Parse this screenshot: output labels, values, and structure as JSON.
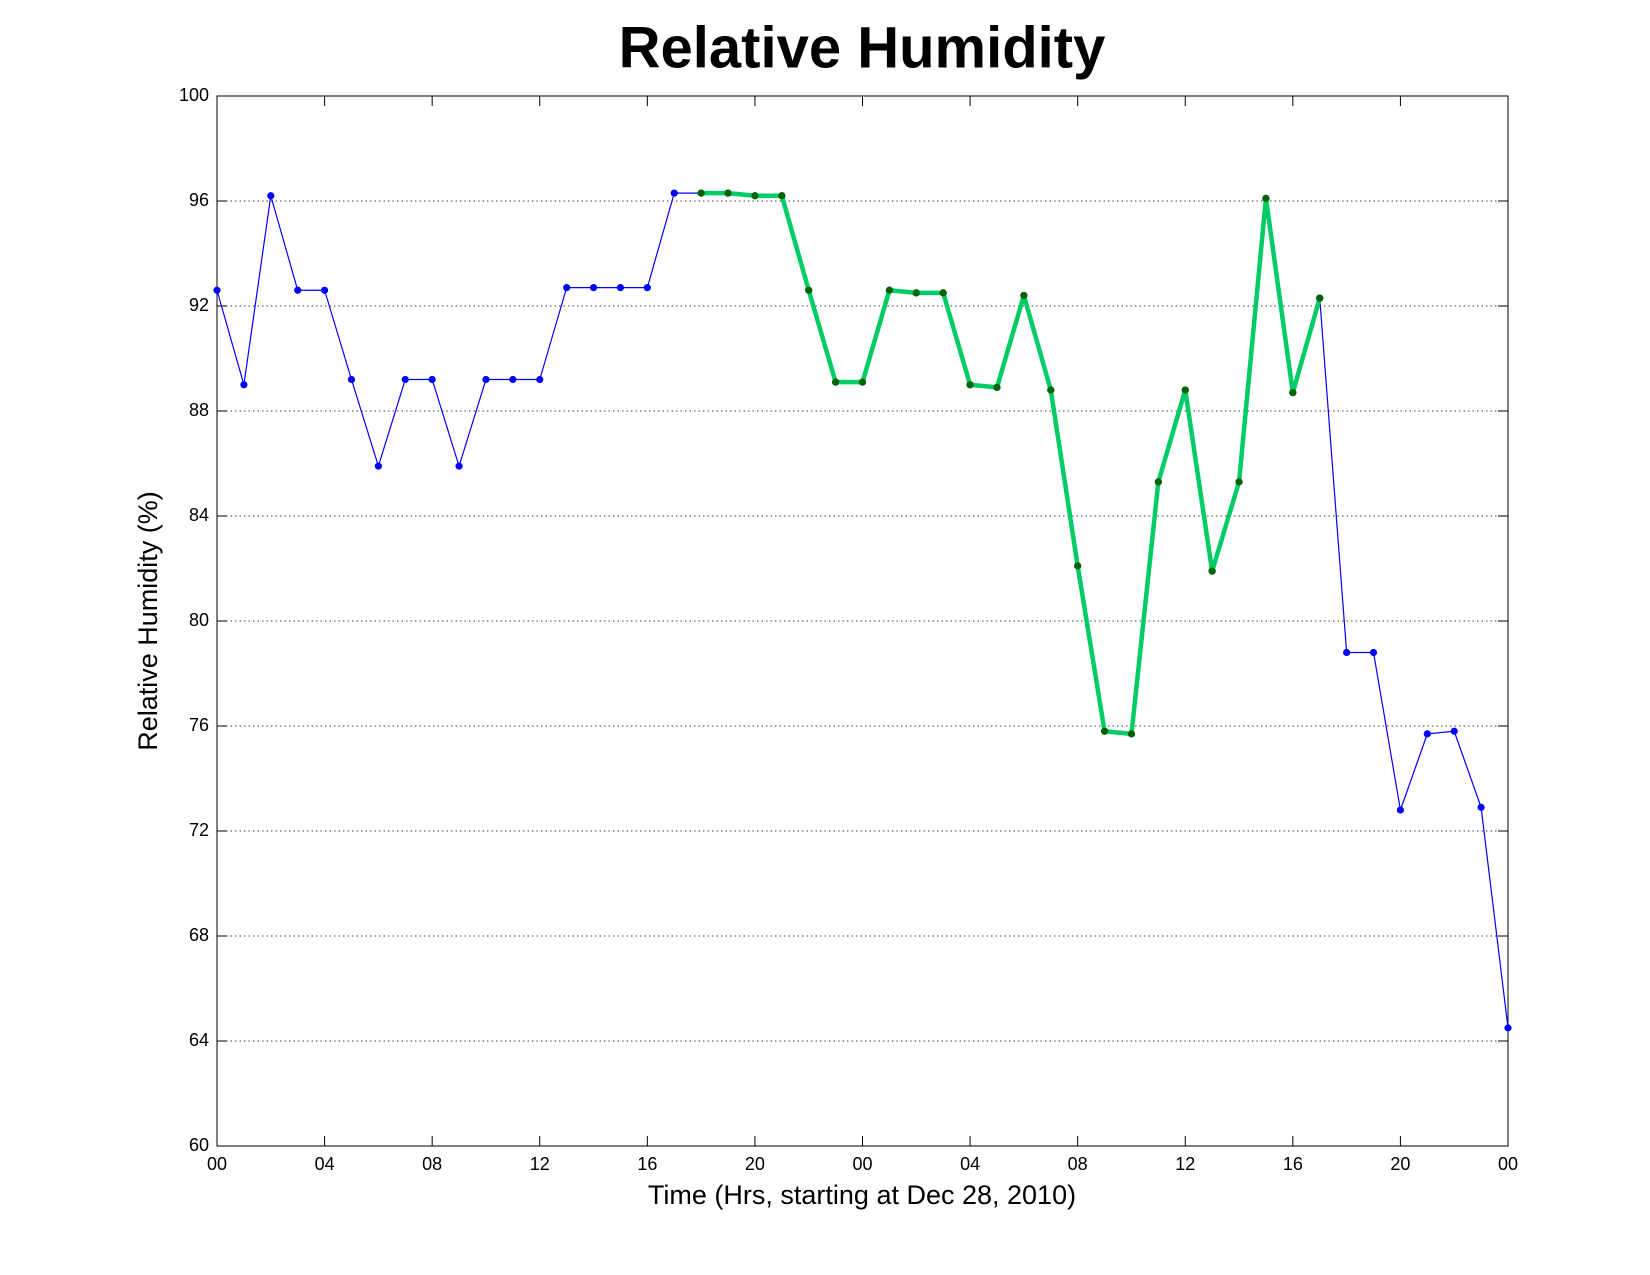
{
  "chart_data": {
    "type": "line",
    "title": "Relative Humidity",
    "x_label": "Time (Hrs, starting at Dec 28, 2010)",
    "y_label": "Relative Humidity (%)",
    "xlim": [
      0,
      48
    ],
    "xticks": [
      {
        "value": 0,
        "label": "00"
      },
      {
        "value": 4,
        "label": "04"
      },
      {
        "value": 8,
        "label": "08"
      },
      {
        "value": 12,
        "label": "12"
      },
      16,
      20,
      {
        "value": 24,
        "label": "00"
      },
      {
        "value": 28,
        "label": "04"
      },
      {
        "value": 32,
        "label": "08"
      },
      {
        "value": 36,
        "label": "12"
      },
      {
        "value": 40,
        "label": "16"
      },
      {
        "value": 44,
        "label": "20"
      },
      {
        "value": 48,
        "label": "00"
      }
    ],
    "ylim": [
      60,
      100
    ],
    "yticks": [
      60,
      64,
      68,
      72,
      76,
      80,
      84,
      88,
      92,
      96,
      100
    ],
    "grid": true,
    "series": [
      {
        "color": "#0000ff",
        "marker_color": "#0000ff",
        "line_width": 1.2,
        "x": [
          0,
          1,
          2,
          3,
          4,
          5,
          6,
          7,
          8,
          9,
          10,
          11,
          12,
          13,
          14,
          15,
          16,
          17,
          18,
          19,
          20,
          21,
          22,
          23,
          24,
          25,
          26,
          27,
          28,
          29,
          30,
          31,
          32,
          33,
          34,
          35,
          36,
          37,
          38,
          39,
          40,
          41,
          42,
          43,
          44,
          45,
          46,
          47,
          48
        ],
        "values": [
          92.6,
          89.0,
          96.2,
          92.6,
          92.6,
          89.2,
          85.9,
          89.2,
          89.2,
          85.9,
          89.2,
          89.2,
          89.2,
          92.7,
          92.7,
          92.7,
          92.7,
          96.3,
          96.3,
          96.3,
          96.2,
          96.2,
          92.6,
          89.1,
          89.1,
          92.6,
          92.5,
          92.5,
          89.0,
          88.9,
          92.4,
          88.8,
          82.1,
          75.8,
          75.7,
          85.3,
          88.8,
          81.9,
          85.3,
          96.1,
          88.7,
          92.3,
          78.8,
          78.8,
          72.8,
          75.7,
          75.8,
          72.9,
          64.5
        ]
      },
      {
        "color": "#00cc66",
        "marker_color": "#006400",
        "line_width": 4.5,
        "x": [
          18,
          19,
          20,
          21,
          22,
          23,
          24,
          25,
          26,
          27,
          28,
          29,
          30,
          31,
          32,
          33,
          34,
          35,
          36,
          37,
          38,
          39,
          40,
          41
        ],
        "values": [
          96.3,
          96.3,
          96.2,
          96.2,
          92.6,
          89.1,
          89.1,
          92.6,
          92.5,
          92.5,
          89.0,
          88.9,
          92.4,
          88.8,
          82.1,
          75.8,
          75.7,
          85.3,
          88.8,
          81.9,
          85.3,
          96.1,
          88.7,
          92.3
        ]
      }
    ]
  }
}
